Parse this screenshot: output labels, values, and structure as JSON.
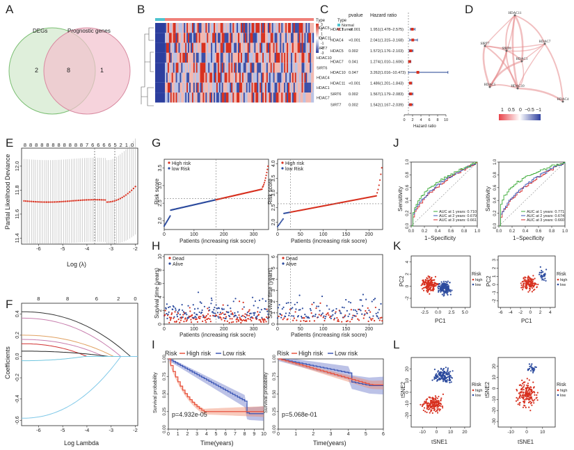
{
  "panels": {
    "A": {
      "letter": "A",
      "set_labels": [
        "DEGs",
        "Prognostic genes"
      ],
      "only_left": "2",
      "overlap": "8",
      "only_right": "1"
    },
    "B": {
      "letter": "B",
      "genes": [
        "HDAC5",
        "HDAC11",
        "SIRT7",
        "HDAC10",
        "SIRT6",
        "HDAC4",
        "HDAC1",
        "HDAC7"
      ],
      "legend_title": "Type",
      "legend_items": [
        "Normal",
        "Tumor"
      ],
      "scale_ticks": [
        "3",
        "2",
        "1",
        "0",
        "-1",
        "-2",
        "-3"
      ],
      "colors": {
        "normal": "#4fc4cf",
        "tumor": "#f0807a",
        "high": "#d7301f",
        "low": "#2c3e9e"
      }
    },
    "C": {
      "letter": "C",
      "col_pvalue": "pvalue",
      "col_hr": "Hazard ratio",
      "xlabel": "Hazard ratio",
      "xticks": [
        "0",
        "2",
        "4",
        "6",
        "8",
        "10"
      ],
      "rows": [
        {
          "gene": "HDAC1",
          "p": "<0.001",
          "hr_text": "1.951(1.478–2.575)",
          "hr": 1.951,
          "lo": 1.478,
          "hi": 2.575
        },
        {
          "gene": "HDAC4",
          "p": "<0.001",
          "hr_text": "2.041(1.315–3.168)",
          "hr": 2.041,
          "lo": 1.315,
          "hi": 3.168
        },
        {
          "gene": "HDAC5",
          "p": "0.002",
          "hr_text": "1.572(1.176–2.103)",
          "hr": 1.572,
          "lo": 1.176,
          "hi": 2.103
        },
        {
          "gene": "HDAC7",
          "p": "0.041",
          "hr_text": "1.274(1.010–1.606)",
          "hr": 1.274,
          "lo": 1.01,
          "hi": 1.606
        },
        {
          "gene": "HDAC10",
          "p": "0.047",
          "hr_text": "3.262(1.016–10.473)",
          "hr": 3.262,
          "lo": 1.016,
          "hi": 10.473
        },
        {
          "gene": "HDAC11",
          "p": "<0.001",
          "hr_text": "1.486(1.201–1.843)",
          "hr": 1.486,
          "lo": 1.201,
          "hi": 1.843
        },
        {
          "gene": "SIRT6",
          "p": "0.002",
          "hr_text": "1.567(1.179–2.083)",
          "hr": 1.567,
          "lo": 1.179,
          "hi": 2.083
        },
        {
          "gene": "SIRT7",
          "p": "0.002",
          "hr_text": "1.542(1.167–2.039)",
          "hr": 1.542,
          "lo": 1.167,
          "hi": 2.039
        }
      ]
    },
    "D": {
      "letter": "D",
      "nodes": [
        "HDAC11",
        "SIRT7",
        "SIRT6",
        "HDAC7",
        "HDAC1",
        "HDAC5",
        "HDAC10",
        "HDAC4"
      ],
      "scale_labels": [
        "1",
        "0.5",
        "0",
        "−0.5",
        "−1"
      ]
    },
    "E": {
      "letter": "E",
      "top_ticks": [
        "8",
        "8",
        "8",
        "8",
        "8",
        "8",
        "8",
        "8",
        "8",
        "8",
        "8",
        "7",
        "6",
        "6",
        "6",
        "6",
        "5",
        "2",
        "1",
        "0"
      ],
      "ylabel": "Partial Likelihood Deviance",
      "xlabel": "Log (λ)",
      "yticks": [
        "11.4",
        "11.6",
        "11.8",
        "12.0"
      ],
      "xticks": [
        "-6",
        "-5",
        "-4",
        "-3",
        "-2"
      ]
    },
    "F": {
      "letter": "F",
      "top_ticks": [
        "8",
        "8",
        "6",
        "2",
        "0"
      ],
      "ylabel": "Coefficients",
      "xlabel": "Log Lambda",
      "yticks": [
        "-0.6",
        "-0.4",
        "-0.2",
        "0.0",
        "0.2",
        "0.4"
      ],
      "xticks": [
        "-6",
        "-5",
        "-4",
        "-3",
        "-2"
      ]
    },
    "G": {
      "letter": "G",
      "ylabel": "Risk score",
      "xlabel": "Patients (increasing risk socre)",
      "legend": [
        "High risk",
        "low Risk"
      ],
      "left_yticks": [
        "2.0",
        "2.5",
        "3.0",
        "3.5"
      ],
      "left_xticks": [
        "0",
        "100",
        "200",
        "300"
      ],
      "right_yticks": [
        "2.0",
        "2.5",
        "3.0",
        "3.5",
        "4.0"
      ],
      "right_xticks": [
        "0",
        "50",
        "100",
        "150",
        "200"
      ]
    },
    "H": {
      "letter": "H",
      "ylabel": "Survival time (years)",
      "xlabel": "Patients (increasing risk socre)",
      "legend": [
        "Dead",
        "Alive"
      ],
      "left_yticks": [
        "0",
        "2",
        "4",
        "6",
        "8",
        "10"
      ],
      "left_xticks": [
        "0",
        "100",
        "200",
        "300"
      ],
      "right_yticks": [
        "0",
        "1",
        "2",
        "3",
        "4",
        "5",
        "6"
      ],
      "right_xticks": [
        "0",
        "50",
        "100",
        "150",
        "200"
      ]
    },
    "I": {
      "letter": "I",
      "legend_title": "Risk",
      "legend": [
        "High risk",
        "Low risk"
      ],
      "ylabel": "Survival probability",
      "xlabel": "Time(years)",
      "left_p": "p=4.932e-05",
      "right_p": "p=5.068e-01",
      "yticks": [
        "0.00",
        "0.25",
        "0.50",
        "0.75",
        "1.00"
      ],
      "left_xticks": [
        "0",
        "1",
        "2",
        "3",
        "4",
        "5",
        "6",
        "7",
        "8",
        "9",
        "10"
      ],
      "right_xticks": [
        "0",
        "1",
        "2",
        "3",
        "4",
        "5",
        "6"
      ]
    },
    "J": {
      "letter": "J",
      "ylabel": "Sensitivity",
      "xlabel": "1−Specificity",
      "ticks": [
        "0.0",
        "0.2",
        "0.4",
        "0.6",
        "0.8",
        "1.0"
      ],
      "left_auc": [
        "AUC at 1 years: 0.710",
        "AUC at 2 years: 0.679",
        "AUC at 3 years: 0.661"
      ],
      "right_auc": [
        "AUC at 1 years: 0.771",
        "AUC at 2 years: 0.674",
        "AUC at 3 years: 0.660"
      ],
      "colors": [
        "#3aa935",
        "#3a55b4",
        "#d62728"
      ]
    },
    "K": {
      "letter": "K",
      "xlabel": "PC1",
      "ylabel": "PC2",
      "legend_title": "Risk",
      "legend": [
        "high",
        "low"
      ],
      "left_xticks": [
        "-2.5",
        "0.0",
        "2.5",
        "5.0"
      ],
      "left_yticks": [
        "-2",
        "0",
        "2",
        "4"
      ],
      "right_xticks": [
        "-6",
        "-4",
        "-2",
        "0",
        "2",
        "4"
      ],
      "right_yticks": [
        "-2",
        "-1",
        "0",
        "1",
        "2",
        "3"
      ]
    },
    "L": {
      "letter": "L",
      "xlabel": "tSNE1",
      "ylabel": "tSNE2",
      "legend_title": "Risk",
      "legend": [
        "high",
        "low"
      ],
      "left_xticks": [
        "-10",
        "0",
        "10",
        "20"
      ],
      "left_yticks": [
        "-20",
        "-10",
        "0",
        "10",
        "20"
      ],
      "right_xticks": [
        "-10",
        "0",
        "10"
      ],
      "right_yticks": [
        "-30",
        "-20",
        "-10",
        "0",
        "10",
        "20"
      ]
    }
  },
  "chart_data": [
    {
      "type": "venn",
      "panel": "A",
      "sets": [
        "DEGs",
        "Prognostic genes"
      ],
      "values": {
        "DEGs only": 2,
        "both": 8,
        "Prognostic genes only": 1
      }
    },
    {
      "type": "heatmap",
      "panel": "B",
      "rows": [
        "HDAC5",
        "HDAC11",
        "SIRT7",
        "HDAC10",
        "SIRT6",
        "HDAC4",
        "HDAC1",
        "HDAC7"
      ],
      "groups": [
        "Normal",
        "Tumor"
      ],
      "range": [
        -3,
        3
      ]
    },
    {
      "type": "forest",
      "panel": "C",
      "categories": [
        "HDAC1",
        "HDAC4",
        "HDAC5",
        "HDAC7",
        "HDAC10",
        "HDAC11",
        "SIRT6",
        "SIRT7"
      ],
      "hazard_ratio": [
        1.951,
        2.041,
        1.572,
        1.274,
        3.262,
        1.486,
        1.567,
        1.542
      ],
      "ci_low": [
        1.478,
        1.315,
        1.176,
        1.01,
        1.016,
        1.201,
        1.179,
        1.167
      ],
      "ci_high": [
        2.575,
        3.168,
        2.103,
        1.606,
        10.473,
        1.843,
        2.083,
        2.039
      ],
      "xlim": [
        0,
        10
      ]
    },
    {
      "type": "line",
      "panel": "E",
      "xlabel": "Log (λ)",
      "ylabel": "Partial Likelihood Deviance",
      "xlim": [
        -6.7,
        -1.9
      ],
      "ylim": [
        11.35,
        12.15
      ]
    },
    {
      "type": "line",
      "panel": "F",
      "xlabel": "Log Lambda",
      "ylabel": "Coefficients",
      "xlim": [
        -6.7,
        -1.9
      ],
      "ylim": [
        -0.65,
        0.5
      ]
    },
    {
      "type": "scatter",
      "panel": "G",
      "series": [
        {
          "name": "High risk"
        },
        {
          "name": "low Risk"
        }
      ]
    },
    {
      "type": "scatter",
      "panel": "H",
      "series": [
        {
          "name": "Dead"
        },
        {
          "name": "Alive"
        }
      ]
    },
    {
      "type": "line",
      "panel": "I",
      "series": [
        {
          "name": "High risk"
        },
        {
          "name": "Low risk"
        }
      ],
      "p_values": [
        "p=4.932e-05",
        "p=5.068e-01"
      ]
    },
    {
      "type": "line",
      "panel": "J",
      "series": [
        {
          "name": "AUC at 1 years: 0.710",
          "value": 0.71
        },
        {
          "name": "AUC at 2 years: 0.679",
          "value": 0.679
        },
        {
          "name": "AUC at 3 years: 0.661",
          "value": 0.661
        },
        {
          "name": "AUC at 1 years: 0.771",
          "value": 0.771
        },
        {
          "name": "AUC at 2 years: 0.674",
          "value": 0.674
        },
        {
          "name": "AUC at 3 years: 0.660",
          "value": 0.66
        }
      ],
      "xlim": [
        0,
        1
      ],
      "ylim": [
        0,
        1
      ]
    },
    {
      "type": "scatter",
      "panel": "K",
      "series": [
        {
          "name": "high"
        },
        {
          "name": "low"
        }
      ]
    },
    {
      "type": "scatter",
      "panel": "L",
      "series": [
        {
          "name": "high"
        },
        {
          "name": "low"
        }
      ]
    }
  ]
}
